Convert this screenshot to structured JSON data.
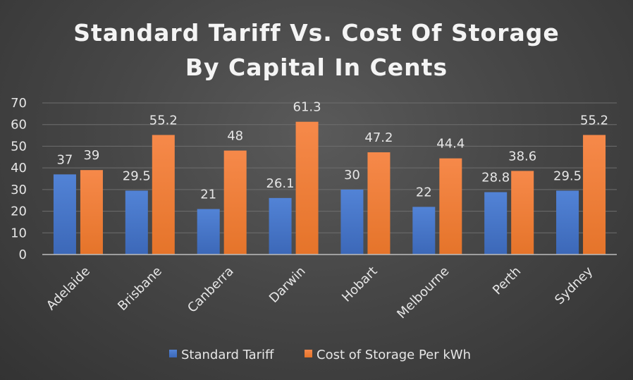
{
  "chart_data": {
    "type": "bar",
    "title": "Standard Tariff Vs. Cost Of Storage By Capital In Cents",
    "title_lines": [
      "Standard Tariff Vs. Cost Of Storage",
      "By Capital In Cents"
    ],
    "xlabel": "",
    "ylabel": "",
    "categories": [
      "Adelaide",
      "Brisbane",
      "Canberra",
      "Darwin",
      "Hobart",
      "Melbourne",
      "Perth",
      "Sydney"
    ],
    "series": [
      {
        "name": "Standard Tariff",
        "values": [
          37,
          29.5,
          21,
          26.1,
          30,
          22,
          28.8,
          29.5
        ],
        "labels": [
          "37",
          "29.5",
          "21",
          "26.1",
          "30",
          "22",
          "28.8",
          "29.5"
        ],
        "color": "#4472c4"
      },
      {
        "name": "Cost of Storage Per kWh",
        "values": [
          39,
          55.2,
          48,
          61.3,
          47.2,
          44.4,
          38.6,
          55.2
        ],
        "labels": [
          "39",
          "55.2",
          "48",
          "61.3",
          "47.2",
          "44.4",
          "38.6",
          "55.2"
        ],
        "color": "#ed7d31"
      }
    ],
    "ylim": [
      0,
      70
    ],
    "yticks": [
      "0",
      "10",
      "20",
      "30",
      "40",
      "50",
      "60",
      "70"
    ],
    "grid": true,
    "legend_position": "bottom"
  }
}
